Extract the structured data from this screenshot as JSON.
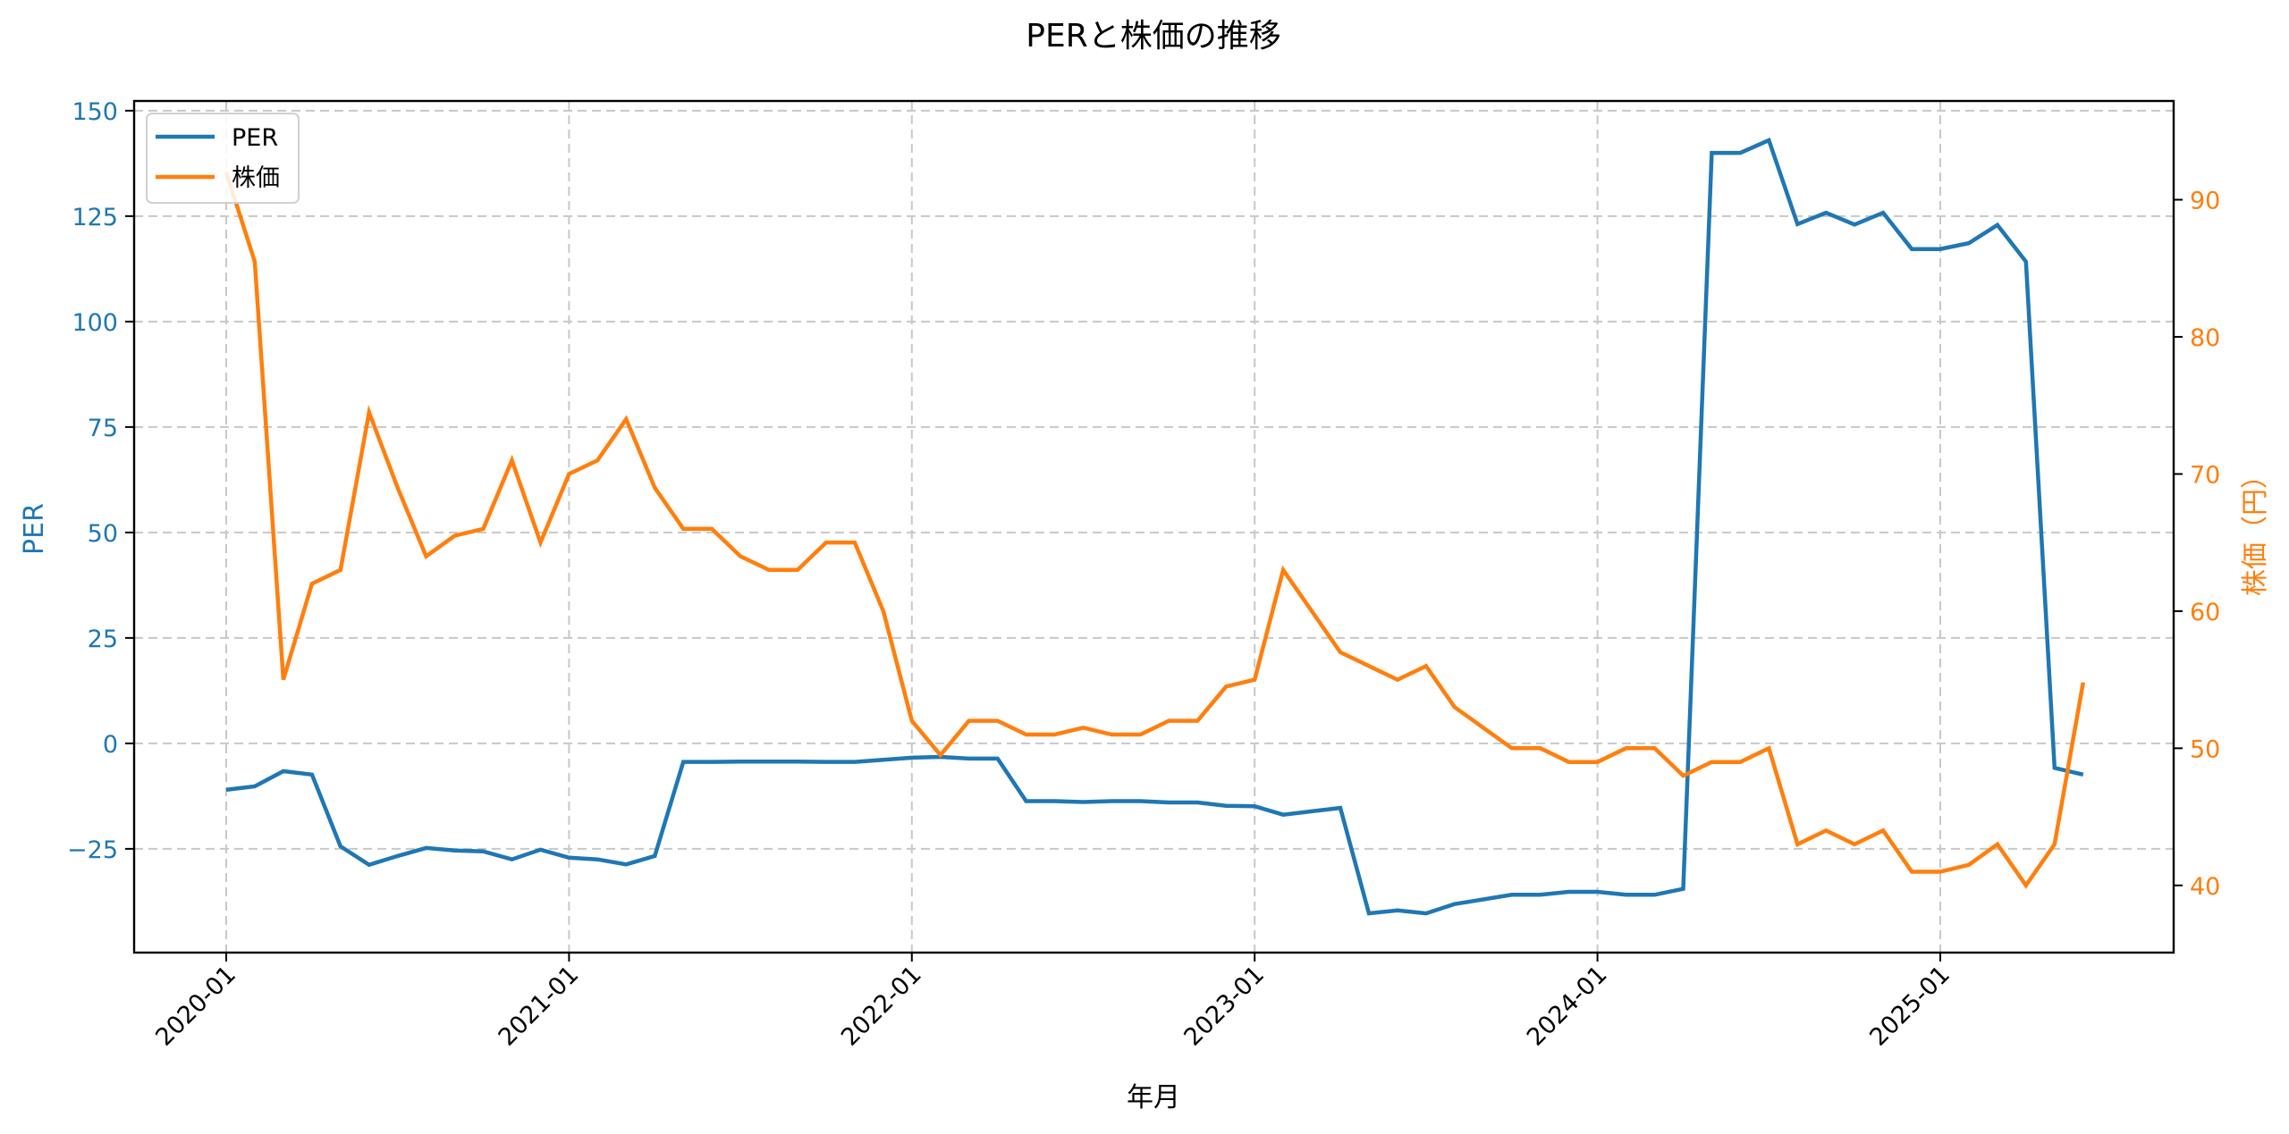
{
  "chart_data": {
    "type": "line",
    "title": "PERと株価の推移",
    "xlabel": "年月",
    "ylabel": "PER",
    "ylabel_right": "株価（円）",
    "grid": true,
    "legend": {
      "position": "upper left",
      "entries": [
        "PER",
        "株価"
      ]
    },
    "x_tick_labels": [
      "2020-01",
      "2021-01",
      "2022-01",
      "2023-01",
      "2024-01",
      "2025-01"
    ],
    "y_left_ticks": [
      -25,
      0,
      25,
      50,
      75,
      100,
      125,
      150
    ],
    "y_right_ticks": [
      40,
      50,
      60,
      70,
      80,
      90
    ],
    "ylim_left": [
      -49.6,
      152.3
    ],
    "ylim_right": [
      35.1,
      97.2
    ],
    "x": [
      "2020-01",
      "2020-02",
      "2020-03",
      "2020-04",
      "2020-05",
      "2020-06",
      "2020-07",
      "2020-08",
      "2020-09",
      "2020-10",
      "2020-11",
      "2020-12",
      "2021-01",
      "2021-02",
      "2021-03",
      "2021-04",
      "2021-05",
      "2021-06",
      "2021-07",
      "2021-08",
      "2021-09",
      "2021-10",
      "2021-11",
      "2021-12",
      "2022-01",
      "2022-02",
      "2022-03",
      "2022-04",
      "2022-05",
      "2022-06",
      "2022-07",
      "2022-08",
      "2022-09",
      "2022-10",
      "2022-11",
      "2022-12",
      "2023-01",
      "2023-02",
      "2023-03",
      "2023-04",
      "2023-05",
      "2023-06",
      "2023-07",
      "2023-08",
      "2023-09",
      "2023-10",
      "2023-11",
      "2023-12",
      "2024-01",
      "2024-02",
      "2024-03",
      "2024-04",
      "2024-05",
      "2024-06",
      "2024-07",
      "2024-08",
      "2024-09",
      "2024-10",
      "2024-11",
      "2024-12",
      "2025-01",
      "2025-02",
      "2025-03",
      "2025-04",
      "2025-05",
      "2025-06"
    ],
    "series": [
      {
        "name": "PER",
        "axis": "left",
        "color": "#1f77b4",
        "values": [
          -11.0,
          -10.2,
          -6.6,
          -7.4,
          -24.4,
          -28.8,
          -26.7,
          -24.8,
          -25.4,
          -25.6,
          -27.5,
          -25.2,
          -27.1,
          -27.5,
          -28.7,
          -26.7,
          -4.4,
          -4.4,
          -4.3,
          -4.3,
          -4.3,
          -4.4,
          -4.4,
          -3.9,
          -3.4,
          -3.2,
          -3.6,
          -3.6,
          -13.7,
          -13.7,
          -13.9,
          -13.7,
          -13.7,
          -14.0,
          -14.0,
          -14.8,
          -14.9,
          -16.9,
          -16.1,
          -15.3,
          -40.3,
          -39.6,
          -40.3,
          -38.1,
          -37.0,
          -35.9,
          -35.9,
          -35.2,
          -35.2,
          -35.9,
          -35.9,
          -34.5,
          140.0,
          140.0,
          143.0,
          123.1,
          125.8,
          123.0,
          125.8,
          117.2,
          117.2,
          118.6,
          122.9,
          114.2,
          -5.8,
          -7.4
        ]
      },
      {
        "name": "株価",
        "axis": "right",
        "color": "#ff7f0e",
        "values": [
          92.0,
          85.5,
          55.0,
          62.0,
          63.0,
          74.5,
          69.0,
          64.0,
          65.5,
          66.0,
          71.0,
          65.0,
          70.0,
          71.0,
          74.0,
          69.0,
          66.0,
          66.0,
          64.0,
          63.0,
          63.0,
          65.0,
          65.0,
          60.0,
          52.0,
          49.5,
          52.0,
          52.0,
          51.0,
          51.0,
          51.5,
          51.0,
          51.0,
          52.0,
          52.0,
          54.5,
          55.0,
          63.0,
          60.0,
          57.0,
          56.0,
          55.0,
          56.0,
          53.0,
          51.5,
          50.0,
          50.0,
          49.0,
          49.0,
          50.0,
          50.0,
          48.0,
          49.0,
          49.0,
          50.0,
          43.0,
          44.0,
          43.0,
          44.0,
          41.0,
          41.0,
          41.5,
          43.0,
          40.0,
          43.0,
          54.8
        ]
      }
    ]
  }
}
